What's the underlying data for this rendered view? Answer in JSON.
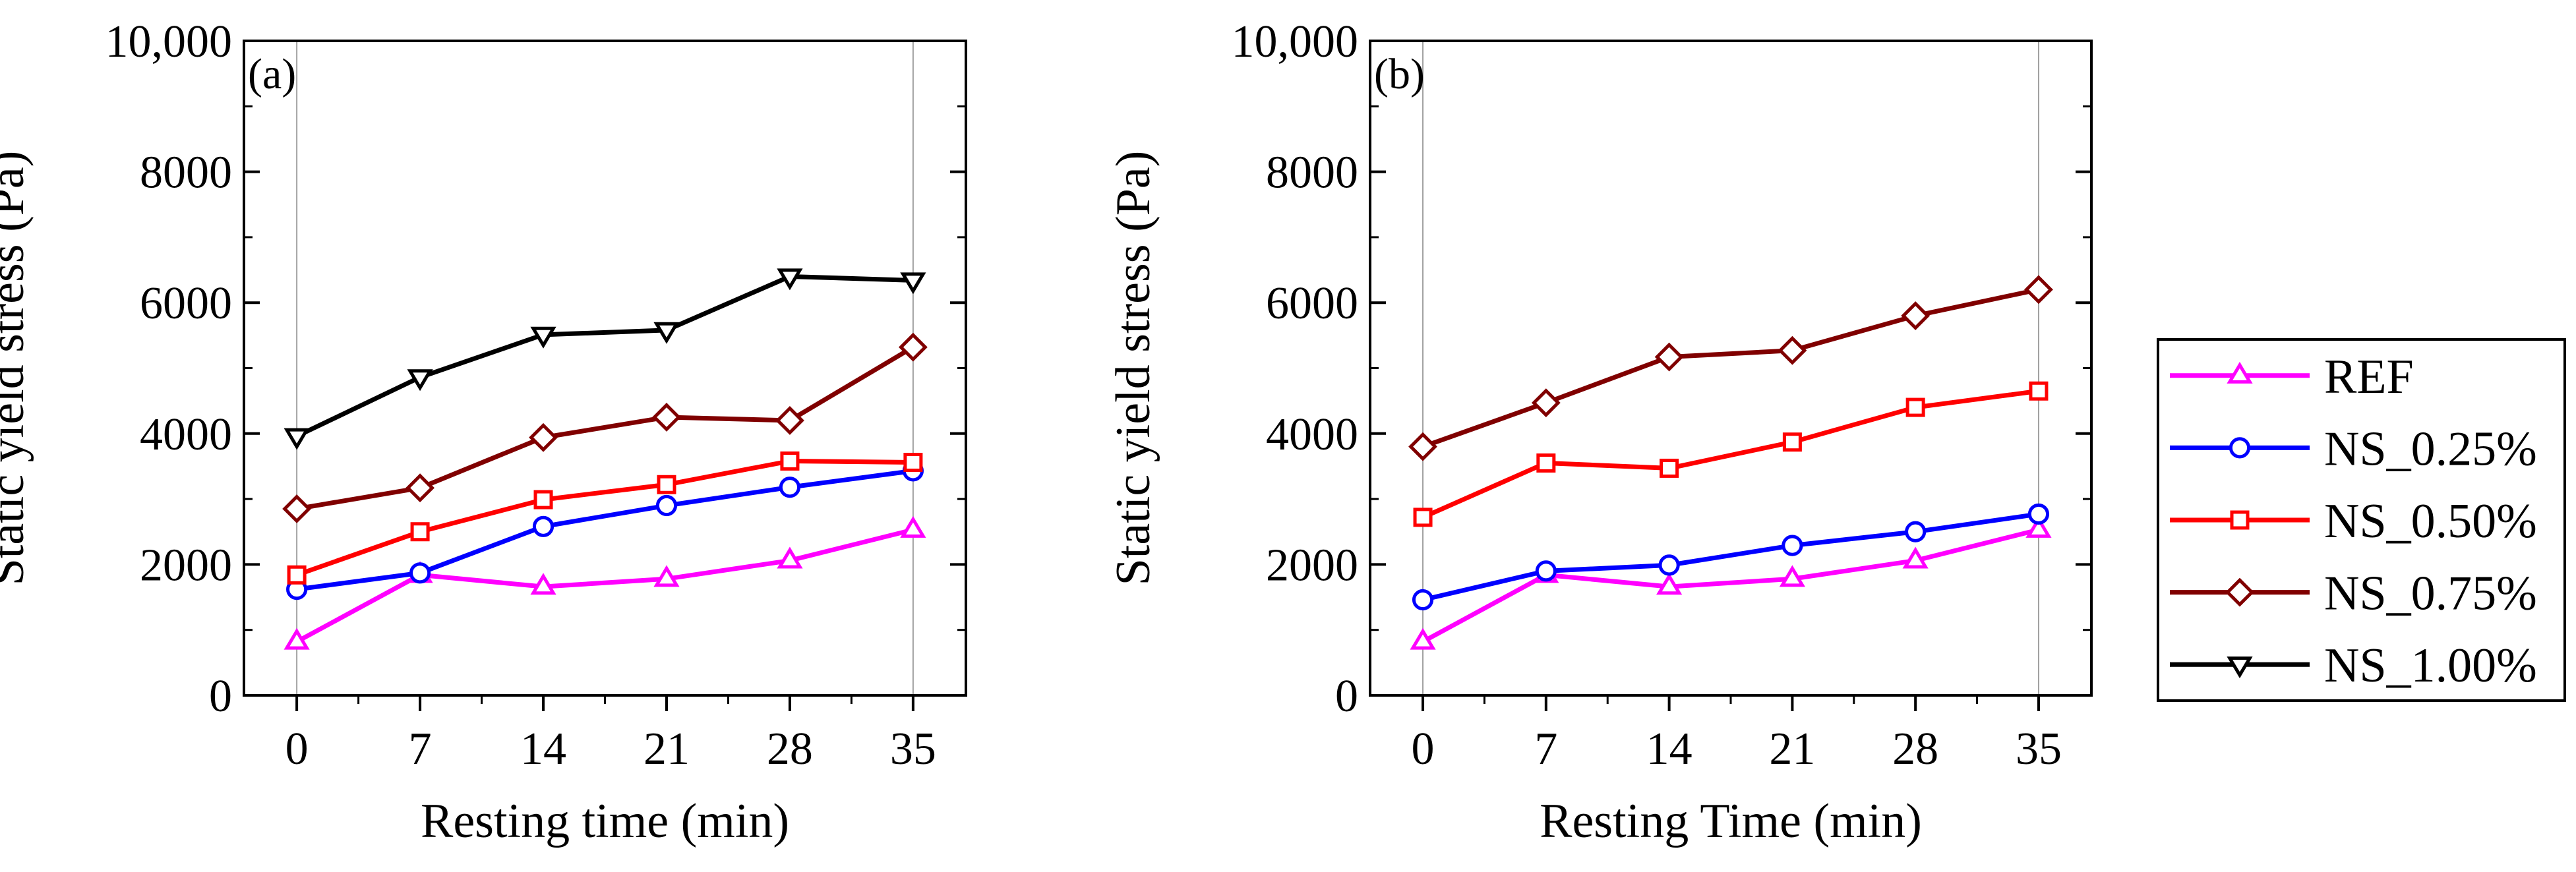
{
  "legend": {
    "entries": [
      {
        "name": "REF",
        "color": "#ff00ff",
        "marker": "triangle-up"
      },
      {
        "name": "NS_0.25%",
        "color": "#0000ff",
        "marker": "circle"
      },
      {
        "name": "NS_0.50%",
        "color": "#ff0000",
        "marker": "square"
      },
      {
        "name": "NS_0.75%",
        "color": "#800000",
        "marker": "diamond"
      },
      {
        "name": "NS_1.00%",
        "color": "#000000",
        "marker": "triangle-down"
      }
    ]
  },
  "chart_data": [
    {
      "type": "line",
      "panel_label": "(a)",
      "xlabel": "Resting time (min)",
      "ylabel": "Static yield stress (Pa)",
      "x": [
        0,
        7,
        14,
        21,
        28,
        35
      ],
      "xticks": [
        "0",
        "7",
        "14",
        "21",
        "28",
        "35"
      ],
      "xlim": [
        -3,
        38
      ],
      "ylim": [
        0,
        10000
      ],
      "yticks": [
        0,
        2000,
        4000,
        6000,
        8000,
        10000
      ],
      "ytick_labels": [
        "0",
        "2000",
        "4000",
        "6000",
        "8000",
        "10,000"
      ],
      "series": [
        {
          "name": "REF",
          "values": [
            820,
            1840,
            1660,
            1780,
            2060,
            2530
          ]
        },
        {
          "name": "NS_0.25%",
          "values": [
            1620,
            1870,
            2580,
            2900,
            3180,
            3430
          ]
        },
        {
          "name": "NS_0.50%",
          "values": [
            1840,
            2500,
            2990,
            3220,
            3580,
            3560
          ]
        },
        {
          "name": "NS_0.75%",
          "values": [
            2850,
            3170,
            3940,
            4250,
            4200,
            5320
          ]
        },
        {
          "name": "NS_1.00%",
          "values": [
            3960,
            4860,
            5510,
            5580,
            6400,
            6340
          ]
        }
      ]
    },
    {
      "type": "line",
      "panel_label": "(b)",
      "xlabel": "Resting Time (min)",
      "ylabel": "Static yield stress (Pa)",
      "x": [
        0,
        7,
        14,
        21,
        28,
        35
      ],
      "xticks": [
        "0",
        "7",
        "14",
        "21",
        "28",
        "35"
      ],
      "xlim": [
        -3,
        38
      ],
      "ylim": [
        0,
        10000
      ],
      "yticks": [
        0,
        2000,
        4000,
        6000,
        8000,
        10000
      ],
      "ytick_labels": [
        "0",
        "2000",
        "4000",
        "6000",
        "8000",
        "10,000"
      ],
      "series": [
        {
          "name": "REF",
          "values": [
            820,
            1840,
            1660,
            1780,
            2060,
            2530
          ]
        },
        {
          "name": "NS_0.25%",
          "values": [
            1460,
            1900,
            1990,
            2290,
            2500,
            2770
          ]
        },
        {
          "name": "NS_0.50%",
          "values": [
            2720,
            3550,
            3470,
            3870,
            4400,
            4650
          ]
        },
        {
          "name": "NS_0.75%",
          "values": [
            3800,
            4470,
            5170,
            5270,
            5800,
            6200
          ]
        }
      ]
    }
  ]
}
